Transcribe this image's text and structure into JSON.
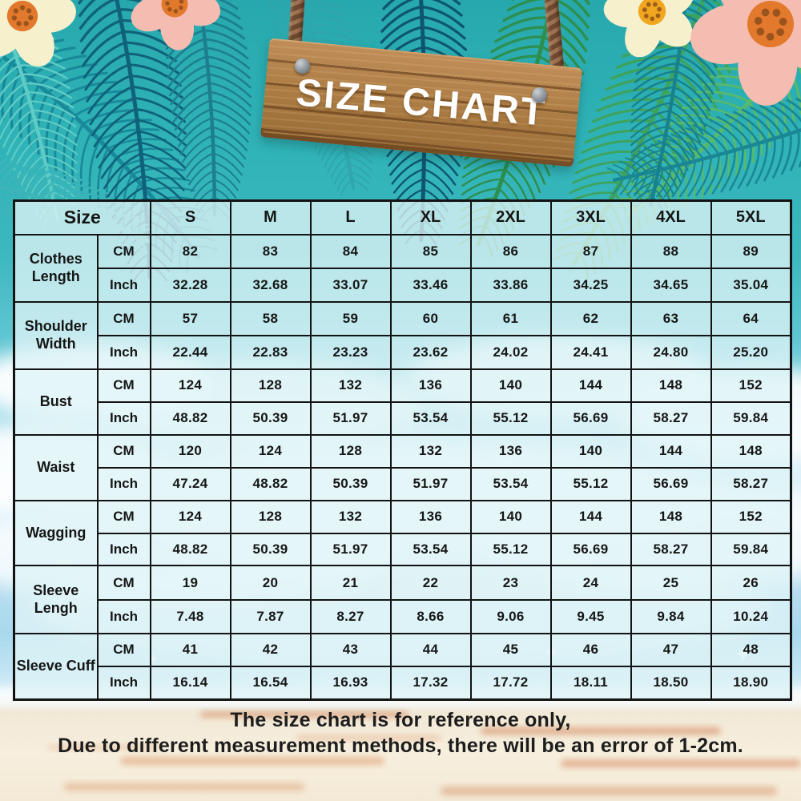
{
  "sign": {
    "title": "SIZE CHART"
  },
  "chart_data": {
    "type": "table",
    "title": "SIZE CHART",
    "corner_label": "Size",
    "size_columns": [
      "S",
      "M",
      "L",
      "XL",
      "2XL",
      "3XL",
      "4XL",
      "5XL"
    ],
    "unit_labels": {
      "cm": "CM",
      "inch": "Inch"
    },
    "rows": [
      {
        "label": "Clothes Length",
        "cm": [
          82,
          83,
          84,
          85,
          86,
          87,
          88,
          89
        ],
        "inch": [
          "32.28",
          "32.68",
          "33.07",
          "33.46",
          "33.86",
          "34.25",
          "34.65",
          "35.04"
        ]
      },
      {
        "label": "Shoulder Width",
        "cm": [
          57,
          58,
          59,
          60,
          61,
          62,
          63,
          64
        ],
        "inch": [
          "22.44",
          "22.83",
          "23.23",
          "23.62",
          "24.02",
          "24.41",
          "24.80",
          "25.20"
        ]
      },
      {
        "label": "Bust",
        "cm": [
          124,
          128,
          132,
          136,
          140,
          144,
          148,
          152
        ],
        "inch": [
          "48.82",
          "50.39",
          "51.97",
          "53.54",
          "55.12",
          "56.69",
          "58.27",
          "59.84"
        ]
      },
      {
        "label": "Waist",
        "cm": [
          120,
          124,
          128,
          132,
          136,
          140,
          144,
          148
        ],
        "inch": [
          "47.24",
          "48.82",
          "50.39",
          "51.97",
          "53.54",
          "55.12",
          "56.69",
          "58.27"
        ]
      },
      {
        "label": "Wagging",
        "cm": [
          124,
          128,
          132,
          136,
          140,
          144,
          148,
          152
        ],
        "inch": [
          "48.82",
          "50.39",
          "51.97",
          "53.54",
          "55.12",
          "56.69",
          "58.27",
          "59.84"
        ]
      },
      {
        "label": "Sleeve Lengh",
        "cm": [
          19,
          20,
          21,
          22,
          23,
          24,
          25,
          26
        ],
        "inch": [
          "7.48",
          "7.87",
          "8.27",
          "8.66",
          "9.06",
          "9.45",
          "9.84",
          "10.24"
        ]
      },
      {
        "label": "Sleeve Cuff",
        "cm": [
          41,
          42,
          43,
          44,
          45,
          46,
          47,
          48
        ],
        "inch": [
          "16.14",
          "16.54",
          "16.93",
          "17.32",
          "17.72",
          "18.11",
          "18.50",
          "18.90"
        ]
      }
    ]
  },
  "footer": {
    "line1": "The size chart is for reference only,",
    "line2": "Due to different measurement methods, there will be an error of 1-2cm."
  },
  "colors": {
    "background_teal": "#2fb3b7",
    "sky_blue": "#a9d8ee",
    "sand": "#f4ebd9",
    "grid_line": "#131313",
    "cell_fill": "rgba(222,243,246,0.78)",
    "sign_wood": "#b5834e",
    "sign_text": "#ffffff",
    "rope": "#8a5f44",
    "nail": "#9aa1a6",
    "cloud": "#ffffff",
    "frond_colors": [
      "#19899a",
      "#5ecbc6",
      "#10627a",
      "#2fa6ab",
      "#0e5570",
      "#2e8e4d",
      "#3da35c",
      "#56b96d",
      "#1a8795",
      "#17818f",
      "#3db4b8",
      "#1d7f8e"
    ],
    "flower_cream": "#f7f0cd",
    "flower_pink": "#f5bdb2",
    "flower_center_orange": "#e2792c",
    "flower_center_yellow": "#f0a71f",
    "sand_streaks": [
      "#cf7a4e",
      "#d98e5f",
      "#e0a377"
    ]
  }
}
